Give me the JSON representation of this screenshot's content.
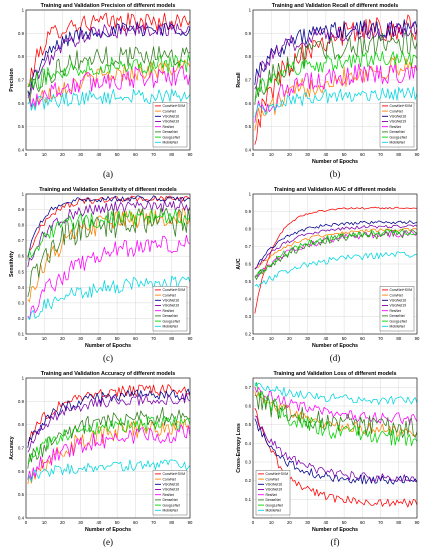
{
  "chart_data": [
    {
      "type": "line",
      "title": "Training and Validation Precision of different models",
      "xlabel": "",
      "ylabel": "Precision",
      "caption": "(a)",
      "xlim": [
        0,
        90
      ],
      "ylim": [
        0.4,
        1.0
      ],
      "xticks": [
        0,
        10,
        20,
        30,
        40,
        50,
        60,
        70,
        80,
        90
      ],
      "yticks": [
        0.4,
        0.5,
        0.6,
        0.7,
        0.8,
        0.9,
        1.0
      ],
      "grid": true,
      "legend_position": "lower-right",
      "series": [
        {
          "name": "ConvNet+SVM",
          "color": "#ff0000",
          "start": 0.62,
          "end": 0.95,
          "rate": 8,
          "noise": 0.025
        },
        {
          "name": "ConvNet",
          "color": "#ff8000",
          "start": 0.58,
          "end": 0.76,
          "rate": 30,
          "noise": 0.025
        },
        {
          "name": "VGGNet16",
          "color": "#00008b",
          "start": 0.62,
          "end": 0.92,
          "rate": 12,
          "noise": 0.02
        },
        {
          "name": "VGGNet19",
          "color": "#7b00a8",
          "start": 0.6,
          "end": 0.92,
          "rate": 14,
          "noise": 0.02
        },
        {
          "name": "ResNet",
          "color": "#ff00ff",
          "start": 0.6,
          "end": 0.72,
          "rate": 25,
          "noise": 0.03
        },
        {
          "name": "DenseNet",
          "color": "#2e7d1a",
          "start": 0.62,
          "end": 0.81,
          "rate": 15,
          "noise": 0.03
        },
        {
          "name": "GoogLeNet",
          "color": "#00d400",
          "start": 0.66,
          "end": 0.77,
          "rate": 15,
          "noise": 0.025
        },
        {
          "name": "MobileNet",
          "color": "#00d6e0",
          "start": 0.58,
          "end": 0.63,
          "rate": 15,
          "noise": 0.02
        }
      ]
    },
    {
      "type": "line",
      "title": "Training and Validation Recall of different models",
      "xlabel": "Number of Epochs",
      "ylabel": "Recall",
      "caption": "(b)",
      "xlim": [
        0,
        90
      ],
      "ylim": [
        0.4,
        1.0
      ],
      "xticks": [
        0,
        10,
        20,
        30,
        40,
        50,
        60,
        70,
        80,
        90
      ],
      "yticks": [
        0.4,
        0.5,
        0.6,
        0.7,
        0.8,
        0.9,
        1.0
      ],
      "grid": true,
      "legend_position": "lower-right",
      "series": [
        {
          "name": "ConvNet+SVM",
          "color": "#ff0000",
          "start": 0.45,
          "end": 0.93,
          "rate": 18,
          "noise": 0.035
        },
        {
          "name": "ConvNet",
          "color": "#ff8000",
          "start": 0.52,
          "end": 0.78,
          "rate": 35,
          "noise": 0.03
        },
        {
          "name": "VGGNet16",
          "color": "#00008b",
          "start": 0.7,
          "end": 0.92,
          "rate": 15,
          "noise": 0.025
        },
        {
          "name": "VGGNet19",
          "color": "#7b00a8",
          "start": 0.68,
          "end": 0.91,
          "rate": 15,
          "noise": 0.025
        },
        {
          "name": "ResNet",
          "color": "#ff00ff",
          "start": 0.55,
          "end": 0.74,
          "rate": 25,
          "noise": 0.03
        },
        {
          "name": "DenseNet",
          "color": "#2e7d1a",
          "start": 0.62,
          "end": 0.86,
          "rate": 20,
          "noise": 0.03
        },
        {
          "name": "GoogLeNet",
          "color": "#00d400",
          "start": 0.64,
          "end": 0.79,
          "rate": 20,
          "noise": 0.025
        },
        {
          "name": "MobileNet",
          "color": "#00d6e0",
          "start": 0.56,
          "end": 0.64,
          "rate": 20,
          "noise": 0.02
        }
      ]
    },
    {
      "type": "line",
      "title": "Training and Validation Sensitivity of different models",
      "xlabel": "Number of Epochs",
      "ylabel": "Sensitivity",
      "caption": "(c)",
      "xlim": [
        0,
        90
      ],
      "ylim": [
        0.1,
        1.0
      ],
      "xticks": [
        0,
        10,
        20,
        30,
        40,
        50,
        60,
        70,
        80,
        90
      ],
      "yticks": [
        0.1,
        0.2,
        0.3,
        0.4,
        0.5,
        0.6,
        0.7,
        0.8,
        0.9,
        1.0
      ],
      "grid": true,
      "legend_position": "lower-right",
      "series": [
        {
          "name": "ConvNet+SVM",
          "color": "#ff0000",
          "start": 0.55,
          "end": 0.97,
          "rate": 10,
          "noise": 0.012
        },
        {
          "name": "ConvNet",
          "color": "#ff8000",
          "start": 0.3,
          "end": 0.86,
          "rate": 18,
          "noise": 0.04
        },
        {
          "name": "VGGNet16",
          "color": "#00008b",
          "start": 0.55,
          "end": 0.97,
          "rate": 8,
          "noise": 0.012
        },
        {
          "name": "VGGNet19",
          "color": "#7b00a8",
          "start": 0.5,
          "end": 0.92,
          "rate": 12,
          "noise": 0.025
        },
        {
          "name": "ResNet",
          "color": "#ff00ff",
          "start": 0.2,
          "end": 0.7,
          "rate": 25,
          "noise": 0.04
        },
        {
          "name": "DenseNet",
          "color": "#2e7d1a",
          "start": 0.3,
          "end": 0.82,
          "rate": 12,
          "noise": 0.06
        },
        {
          "name": "GoogLeNet",
          "color": "#00d400",
          "start": 0.55,
          "end": 0.85,
          "rate": 12,
          "noise": 0.035
        },
        {
          "name": "MobileNet",
          "color": "#00d6e0",
          "start": 0.2,
          "end": 0.44,
          "rate": 25,
          "noise": 0.03
        }
      ]
    },
    {
      "type": "line",
      "title": "Training and Validation AUC of different models",
      "xlabel": "Number of Epochs",
      "ylabel": "AUC",
      "caption": "(d)",
      "xlim": [
        0,
        90
      ],
      "ylim": [
        0.2,
        1.0
      ],
      "xticks": [
        0,
        10,
        20,
        30,
        40,
        50,
        60,
        70,
        80,
        90
      ],
      "yticks": [
        0.2,
        0.3,
        0.4,
        0.5,
        0.6,
        0.7,
        0.8,
        0.9,
        1.0
      ],
      "grid": true,
      "legend_position": "lower-right",
      "series": [
        {
          "name": "ConvNet+SVM",
          "color": "#ff0000",
          "start": 0.25,
          "end": 0.92,
          "rate": 10,
          "noise": 0.004
        },
        {
          "name": "ConvNet",
          "color": "#ff8000",
          "start": 0.55,
          "end": 0.8,
          "rate": 20,
          "noise": 0.006
        },
        {
          "name": "VGGNet16",
          "color": "#00008b",
          "start": 0.55,
          "end": 0.84,
          "rate": 15,
          "noise": 0.006
        },
        {
          "name": "VGGNet19",
          "color": "#7b00a8",
          "start": 0.55,
          "end": 0.82,
          "rate": 18,
          "noise": 0.006
        },
        {
          "name": "ResNet",
          "color": "#ff00ff",
          "start": 0.5,
          "end": 0.78,
          "rate": 22,
          "noise": 0.012
        },
        {
          "name": "DenseNet",
          "color": "#2e7d1a",
          "start": 0.5,
          "end": 0.78,
          "rate": 22,
          "noise": 0.015
        },
        {
          "name": "GoogLeNet",
          "color": "#00d400",
          "start": 0.5,
          "end": 0.79,
          "rate": 22,
          "noise": 0.012
        },
        {
          "name": "MobileNet",
          "color": "#00d6e0",
          "start": 0.45,
          "end": 0.66,
          "rate": 25,
          "noise": 0.012
        }
      ]
    },
    {
      "type": "line",
      "title": "Training and Validation Accuracy of different models",
      "xlabel": "Number of Epochs",
      "ylabel": "Accuracy",
      "caption": "(e)",
      "xlim": [
        0,
        90
      ],
      "ylim": [
        0.4,
        1.0
      ],
      "xticks": [
        0,
        10,
        20,
        30,
        40,
        50,
        60,
        70,
        80,
        90
      ],
      "yticks": [
        0.4,
        0.5,
        0.6,
        0.7,
        0.8,
        0.9,
        1.0
      ],
      "grid": true,
      "legend_position": "lower-right",
      "series": [
        {
          "name": "ConvNet+SVM",
          "color": "#ff0000",
          "start": 0.72,
          "end": 0.95,
          "rate": 15,
          "noise": 0.015
        },
        {
          "name": "ConvNet",
          "color": "#ff8000",
          "start": 0.56,
          "end": 0.8,
          "rate": 25,
          "noise": 0.025
        },
        {
          "name": "VGGNet16",
          "color": "#00008b",
          "start": 0.7,
          "end": 0.93,
          "rate": 15,
          "noise": 0.015
        },
        {
          "name": "VGGNet19",
          "color": "#7b00a8",
          "start": 0.68,
          "end": 0.91,
          "rate": 15,
          "noise": 0.015
        },
        {
          "name": "ResNet",
          "color": "#ff00ff",
          "start": 0.58,
          "end": 0.77,
          "rate": 25,
          "noise": 0.025
        },
        {
          "name": "DenseNet",
          "color": "#2e7d1a",
          "start": 0.62,
          "end": 0.84,
          "rate": 20,
          "noise": 0.025
        },
        {
          "name": "GoogLeNet",
          "color": "#00d400",
          "start": 0.64,
          "end": 0.81,
          "rate": 20,
          "noise": 0.02
        },
        {
          "name": "MobileNet",
          "color": "#00d6e0",
          "start": 0.57,
          "end": 0.63,
          "rate": 20,
          "noise": 0.015
        }
      ]
    },
    {
      "type": "line",
      "title": "Training and Validation Loss of different models",
      "xlabel": "Number of Epochs",
      "ylabel": "Cross-Entropy Loss",
      "caption": "(f)",
      "xlim": [
        0,
        90
      ],
      "ylim": [
        0.0,
        0.75
      ],
      "xticks": [
        0,
        10,
        20,
        30,
        40,
        50,
        60,
        70,
        80,
        90
      ],
      "yticks": [
        0.1,
        0.2,
        0.3,
        0.4,
        0.5,
        0.6,
        0.7
      ],
      "grid": true,
      "legend_position": "lower-left",
      "series": [
        {
          "name": "ConvNet+SVM",
          "color": "#ff0000",
          "start": 0.62,
          "end": 0.08,
          "rate": 15,
          "noise": 0.015
        },
        {
          "name": "ConvNet",
          "color": "#ff8000",
          "start": 0.68,
          "end": 0.45,
          "rate": 30,
          "noise": 0.02
        },
        {
          "name": "VGGNet16",
          "color": "#00008b",
          "start": 0.55,
          "end": 0.2,
          "rate": 15,
          "noise": 0.015
        },
        {
          "name": "VGGNet19",
          "color": "#7b00a8",
          "start": 0.56,
          "end": 0.21,
          "rate": 18,
          "noise": 0.015
        },
        {
          "name": "ResNet",
          "color": "#ff00ff",
          "start": 0.7,
          "end": 0.52,
          "rate": 30,
          "noise": 0.02
        },
        {
          "name": "DenseNet",
          "color": "#2e7d1a",
          "start": 0.65,
          "end": 0.48,
          "rate": 25,
          "noise": 0.035
        },
        {
          "name": "GoogLeNet",
          "color": "#00d400",
          "start": 0.7,
          "end": 0.42,
          "rate": 25,
          "noise": 0.03
        },
        {
          "name": "MobileNet",
          "color": "#00d6e0",
          "start": 0.72,
          "end": 0.62,
          "rate": 30,
          "noise": 0.015
        }
      ]
    }
  ]
}
